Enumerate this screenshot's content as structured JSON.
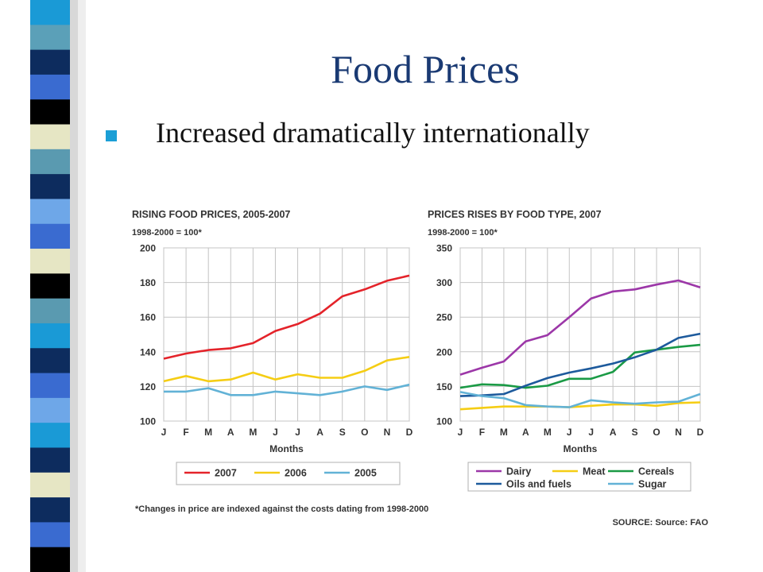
{
  "slide": {
    "title": "Food Prices",
    "bullet": "Increased dramatically internationally"
  },
  "colors": {
    "title": "#1a3a73",
    "bullet": "#1b9fd6",
    "stripe": [
      "#1a9ad6",
      "#5ba0b8",
      "#0d2c5e",
      "#3a6bd0",
      "#000000",
      "#e6e6c4",
      "#5a9ab0",
      "#0d2c5e",
      "#6ea7e8",
      "#3a6bd0",
      "#e6e6c4",
      "#000000",
      "#5a9ab0",
      "#1a9ad6",
      "#0d2c5e",
      "#3a6bd0",
      "#6ea7e8",
      "#1a9ad6",
      "#0d2c5e",
      "#e6e6c4",
      "#0d2c5e",
      "#3a6bd0",
      "#000000"
    ]
  },
  "footnote": "*Changes in price are indexed against the costs dating from 1998-2000",
  "source": "SOURCE: Source: FAO",
  "chart_data": [
    {
      "type": "line",
      "title": "RISING FOOD PRICES, 2005-2007",
      "subtitle": "1998-2000 = 100*",
      "xlabel": "Months",
      "ylabel": "",
      "categories": [
        "J",
        "F",
        "M",
        "A",
        "M",
        "J",
        "J",
        "A",
        "S",
        "O",
        "N",
        "D"
      ],
      "ylim": [
        100,
        200
      ],
      "yticks": [
        "100",
        "120",
        "140",
        "160",
        "180",
        "200"
      ],
      "grid": true,
      "legend": "bottom",
      "series": [
        {
          "name": "2007",
          "color": "#e4232a",
          "values": [
            136,
            139,
            141,
            142,
            145,
            152,
            156,
            162,
            172,
            176,
            181,
            184
          ]
        },
        {
          "name": "2006",
          "color": "#f5cd14",
          "values": [
            123,
            126,
            123,
            124,
            128,
            124,
            127,
            125,
            125,
            129,
            135,
            137
          ]
        },
        {
          "name": "2005",
          "color": "#62b2d6",
          "values": [
            117,
            117,
            119,
            115,
            115,
            117,
            116,
            115,
            117,
            120,
            118,
            121
          ]
        }
      ]
    },
    {
      "type": "line",
      "title": "PRICES RISES BY FOOD TYPE, 2007",
      "subtitle": "1998-2000 = 100*",
      "xlabel": "Months",
      "ylabel": "",
      "categories": [
        "J",
        "F",
        "M",
        "A",
        "M",
        "J",
        "J",
        "A",
        "S",
        "O",
        "N",
        "D"
      ],
      "ylim": [
        100,
        350
      ],
      "yticks": [
        "100",
        "150",
        "200",
        "250",
        "300",
        "350"
      ],
      "grid": true,
      "legend": "bottom",
      "series": [
        {
          "name": "Dairy",
          "color": "#9c37a8",
          "values": [
            167,
            177,
            186,
            215,
            224,
            250,
            277,
            287,
            290,
            297,
            303,
            293
          ]
        },
        {
          "name": "Meat",
          "color": "#f5cd14",
          "values": [
            117,
            119,
            121,
            121,
            121,
            120,
            122,
            124,
            124,
            122,
            126,
            127
          ]
        },
        {
          "name": "Cereals",
          "color": "#1a9a45",
          "values": [
            148,
            153,
            152,
            148,
            151,
            161,
            161,
            171,
            199,
            203,
            207,
            210
          ]
        },
        {
          "name": "Oils and fuels",
          "color": "#1d5a9c",
          "values": [
            136,
            137,
            139,
            151,
            162,
            170,
            176,
            183,
            192,
            203,
            220,
            226
          ]
        },
        {
          "name": "Sugar",
          "color": "#62b2d6",
          "values": [
            142,
            136,
            133,
            123,
            121,
            120,
            130,
            127,
            125,
            127,
            128,
            139
          ]
        }
      ]
    }
  ]
}
